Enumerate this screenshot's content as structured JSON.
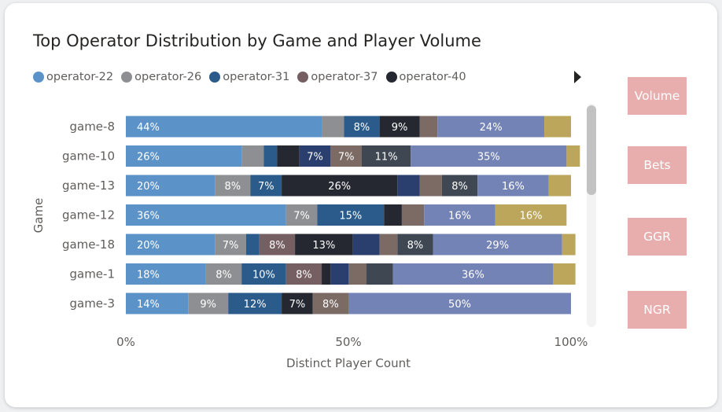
{
  "chart_data": {
    "type": "bar",
    "orientation": "horizontal",
    "stacked": "100%",
    "title": "Top Operator Distribution by Game and Player Volume",
    "xlabel": "Distinct Player Count",
    "ylabel": "Game",
    "xlim": [
      0,
      100
    ],
    "x_ticks": [
      "0%",
      "50%",
      "100%"
    ],
    "categories": [
      "game-8",
      "game-10",
      "game-13",
      "game-12",
      "game-18",
      "game-1",
      "game-3"
    ],
    "series": [
      {
        "name": "operator-22",
        "color": "#5b93c9",
        "values": [
          44,
          26,
          20,
          36,
          20,
          18,
          14
        ]
      },
      {
        "name": "operator-26",
        "color": "#8e8f92",
        "values": [
          5,
          5,
          8,
          7,
          7,
          8,
          9
        ]
      },
      {
        "name": "operator-31",
        "color": "#2b5b8a",
        "values": [
          8,
          3,
          7,
          15,
          3,
          10,
          12
        ]
      },
      {
        "name": "operator-37",
        "color": "#765f63",
        "values": [
          0,
          0,
          0,
          0,
          8,
          8,
          0
        ]
      },
      {
        "name": "operator-40",
        "color": "#252830",
        "values": [
          9,
          5,
          26,
          4,
          13,
          2,
          7
        ]
      },
      {
        "color": "#2a3f6e",
        "values": [
          0,
          7,
          5,
          0,
          6,
          4,
          0
        ]
      },
      {
        "color": "#7b6b64",
        "values": [
          4,
          7,
          5,
          5,
          4,
          4,
          8
        ]
      },
      {
        "color": "#3e4752",
        "values": [
          0,
          11,
          8,
          0,
          8,
          6,
          0
        ]
      },
      {
        "color": "#7483b5",
        "values": [
          24,
          35,
          16,
          16,
          29,
          36,
          50
        ]
      },
      {
        "color": "#bba65c",
        "values": [
          6,
          3,
          5,
          16,
          3,
          5,
          0
        ]
      }
    ],
    "legend": {
      "placement": "top-left",
      "entries": [
        "operator-22",
        "operator-26",
        "operator-31",
        "operator-37",
        "operator-40"
      ]
    },
    "data_labels": true,
    "grid": false
  },
  "side_buttons": [
    "Volume",
    "Bets",
    "GGR",
    "NGR"
  ]
}
